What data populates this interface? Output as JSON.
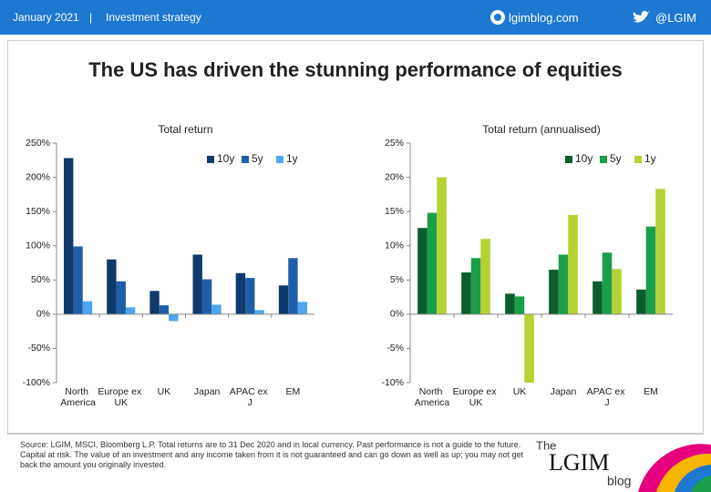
{
  "header": {
    "date": "January 2021",
    "separator": "|",
    "section": "Investment strategy",
    "site": "lgimblog.com",
    "handle": "@LGIM"
  },
  "title": "The US has driven the stunning performance of equities",
  "chart_data": [
    {
      "type": "bar",
      "title": "Total return",
      "categories": [
        "North America",
        "Europe ex UK",
        "UK",
        "Japan",
        "APAC ex J",
        "EM"
      ],
      "series": [
        {
          "name": "10y",
          "color": "#0f3a6b",
          "values": [
            228,
            80,
            34,
            87,
            60,
            42
          ]
        },
        {
          "name": "5y",
          "color": "#1f5fa8",
          "values": [
            99,
            48,
            13,
            51,
            53,
            82
          ]
        },
        {
          "name": "1y",
          "color": "#4da6ef",
          "values": [
            19,
            10,
            -10,
            14,
            6,
            18
          ]
        }
      ],
      "ylim": [
        -100,
        250
      ],
      "yticks": [
        {
          "value": -100,
          "label": "-100%"
        },
        {
          "value": -50,
          "label": "-50%"
        },
        {
          "value": 0,
          "label": "0%"
        },
        {
          "value": 50,
          "label": "50%"
        },
        {
          "value": 100,
          "label": "100%"
        },
        {
          "value": 150,
          "label": "150%"
        },
        {
          "value": 200,
          "label": "200%"
        },
        {
          "value": 250,
          "label": "250%"
        }
      ],
      "legend": "top-right"
    },
    {
      "type": "bar",
      "title": "Total return  (annualised)",
      "categories": [
        "North America",
        "Europe ex UK",
        "UK",
        "Japan",
        "APAC ex J",
        "EM"
      ],
      "series": [
        {
          "name": "10y",
          "color": "#0b5e2c",
          "values": [
            12.6,
            6.1,
            3.0,
            6.5,
            4.8,
            3.6
          ]
        },
        {
          "name": "5y",
          "color": "#1a9e4a",
          "values": [
            14.8,
            8.2,
            2.6,
            8.7,
            9.0,
            12.8
          ]
        },
        {
          "name": "1y",
          "color": "#b5d334",
          "values": [
            20,
            11,
            -10,
            14.5,
            6.6,
            18.3
          ]
        }
      ],
      "ylim": [
        -10,
        25
      ],
      "yticks": [
        {
          "value": -10,
          "label": "-10%"
        },
        {
          "value": -5,
          "label": "-5%"
        },
        {
          "value": 0,
          "label": "0%"
        },
        {
          "value": 5,
          "label": "5%"
        },
        {
          "value": 10,
          "label": "10%"
        },
        {
          "value": 15,
          "label": "15%"
        },
        {
          "value": 20,
          "label": "20%"
        },
        {
          "value": 25,
          "label": "25%"
        }
      ],
      "legend": "top-right"
    }
  ],
  "source": "Source: LGIM, MSCI, Bloomberg L.P. Total returns are to 31 Dec 2020 and in local currency. Past performance is not a guide to the future. Capital at risk. The value of an investment and any income taken from it is not guaranteed and can go down as well as up; you may not get back the amount you originally invested.",
  "logo": {
    "the": "The",
    "name": "LGIM",
    "blog": "blog"
  }
}
